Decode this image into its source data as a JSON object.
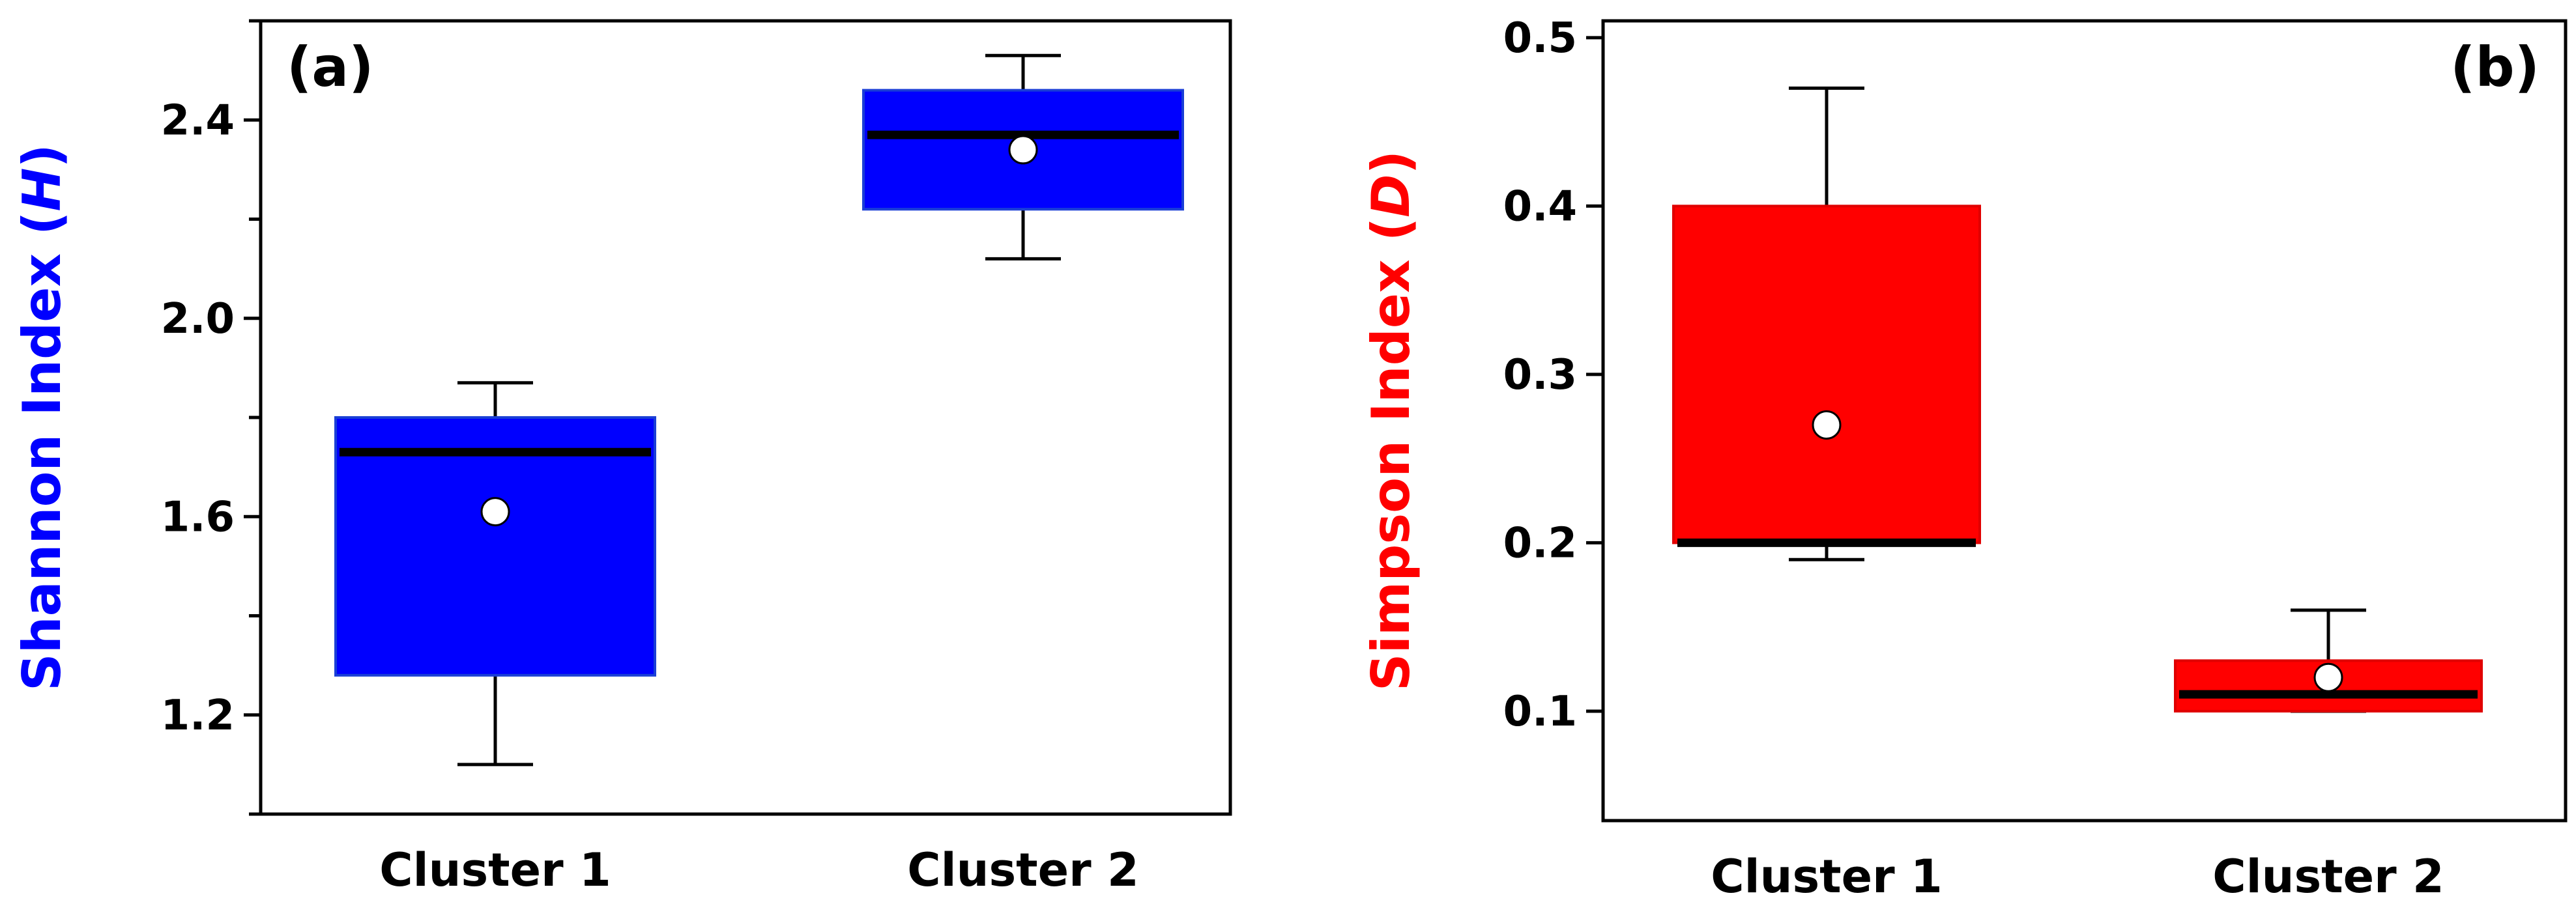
{
  "chart_data": [
    {
      "type": "box",
      "panel_label": "(a)",
      "ylabel": {
        "text": "Shannon Index (",
        "var": "H",
        "close": ")"
      },
      "color": "#0000ff",
      "ylim": [
        1.0,
        2.6
      ],
      "yticks": [
        1.2,
        1.6,
        2.0,
        2.4
      ],
      "yticks_minor": [
        1.0,
        1.4,
        1.8,
        2.2,
        2.6
      ],
      "ytick_labels": [
        "1.2",
        "1.6",
        "2.0",
        "2.4"
      ],
      "categories": [
        "Cluster 1",
        "Cluster 2"
      ],
      "boxes": [
        {
          "whisker_low": 1.1,
          "q1": 1.28,
          "median": 1.73,
          "q3": 1.8,
          "whisker_high": 1.87,
          "mean": 1.61
        },
        {
          "whisker_low": 2.12,
          "q1": 2.22,
          "median": 2.37,
          "q3": 2.46,
          "whisker_high": 2.53,
          "mean": 2.34
        }
      ]
    },
    {
      "type": "box",
      "panel_label": "(b)",
      "ylabel": {
        "text": "Simpson Index (",
        "var": "D",
        "close": ")"
      },
      "color": "#ff0000",
      "ylim": [
        0.035,
        0.51
      ],
      "yticks": [
        0.1,
        0.2,
        0.3,
        0.4,
        0.5
      ],
      "yticks_minor": [],
      "ytick_labels": [
        "0.1",
        "0.2",
        "0.3",
        "0.4",
        "0.5"
      ],
      "categories": [
        "Cluster 1",
        "Cluster 2"
      ],
      "boxes": [
        {
          "whisker_low": 0.19,
          "q1": 0.2,
          "median": 0.2,
          "q3": 0.4,
          "whisker_high": 0.47,
          "mean": 0.27
        },
        {
          "whisker_low": 0.1,
          "q1": 0.1,
          "median": 0.11,
          "q3": 0.13,
          "whisker_high": 0.16,
          "mean": 0.12
        }
      ]
    }
  ]
}
